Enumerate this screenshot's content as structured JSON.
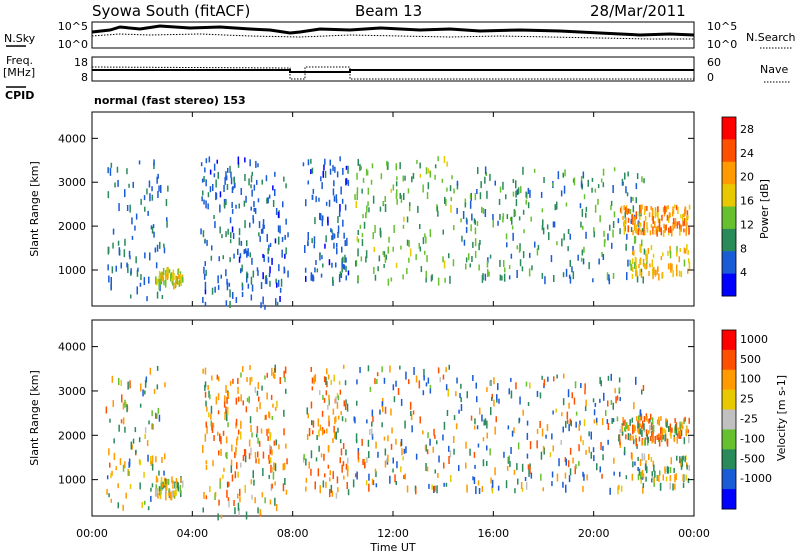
{
  "header": {
    "station": "Syowa South (fitACF)",
    "beam": "Beam 13",
    "date": "28/Mar/2011"
  },
  "top_panels": {
    "nsky_label": "N.Sky",
    "nsky_ticks": [
      "10^5",
      "10^0"
    ],
    "nsearch_label": "N.Search",
    "nsearch_ticks": [
      "10^5",
      "10^0"
    ],
    "freq_label": "Freq.",
    "freq_unit": "[MHz]",
    "freq_ticks": [
      "18",
      "8"
    ],
    "nave_label": "Nave",
    "nave_ticks": [
      "60",
      "0"
    ],
    "cpid_label": "CPID",
    "mode_text": "normal (fast stereo) 153"
  },
  "chart_data": [
    {
      "type": "heatmap",
      "title": "",
      "xlabel": "Time UT",
      "ylabel": "Slant Range [km]",
      "x_ticks": [
        "00:00",
        "04:00",
        "08:00",
        "12:00",
        "16:00",
        "20:00",
        "00:00"
      ],
      "x_range_hours": [
        0,
        24
      ],
      "y_ticks": [
        1000,
        2000,
        3000,
        4000
      ],
      "ylim": [
        180,
        4600
      ],
      "colorbar": {
        "label": "Power [dB]",
        "ticks": [
          4,
          8,
          12,
          16,
          20,
          24,
          28
        ],
        "colors": [
          "#0000ff",
          "#1a5bd6",
          "#2a8a5a",
          "#66c030",
          "#e8c800",
          "#ff9a00",
          "#ff5000",
          "#ff0000"
        ],
        "range": [
          0,
          30
        ]
      },
      "clusters": [
        {
          "t_start": 0.5,
          "t_end": 3.0,
          "r_min": 400,
          "r_max": 3600,
          "value_range": [
            4,
            10
          ],
          "density": 0.6
        },
        {
          "t_start": 2.5,
          "t_end": 3.6,
          "r_min": 700,
          "r_max": 1100,
          "value_range": [
            12,
            20
          ],
          "density": 0.9
        },
        {
          "t_start": 4.3,
          "t_end": 7.8,
          "r_min": 200,
          "r_max": 3600,
          "value_range": [
            3,
            9
          ],
          "density": 1.0
        },
        {
          "t_start": 8.4,
          "t_end": 10.2,
          "r_min": 700,
          "r_max": 3600,
          "value_range": [
            3,
            9
          ],
          "density": 1.0
        },
        {
          "t_start": 10.4,
          "t_end": 14.5,
          "r_min": 800,
          "r_max": 3600,
          "value_range": [
            8,
            16
          ],
          "density": 0.6
        },
        {
          "t_start": 14.5,
          "t_end": 22.0,
          "r_min": 800,
          "r_max": 3400,
          "value_range": [
            5,
            14
          ],
          "density": 0.55
        },
        {
          "t_start": 21.0,
          "t_end": 23.8,
          "r_min": 1900,
          "r_max": 2500,
          "value_range": [
            16,
            26
          ],
          "density": 0.8
        },
        {
          "t_start": 21.5,
          "t_end": 23.8,
          "r_min": 900,
          "r_max": 1600,
          "value_range": [
            14,
            22
          ],
          "density": 0.5
        }
      ]
    },
    {
      "type": "heatmap",
      "title": "",
      "xlabel": "Time UT",
      "ylabel": "Slant Range [km]",
      "x_ticks": [
        "00:00",
        "04:00",
        "08:00",
        "12:00",
        "16:00",
        "20:00",
        "00:00"
      ],
      "x_range_hours": [
        0,
        24
      ],
      "y_ticks": [
        1000,
        2000,
        3000,
        4000
      ],
      "ylim": [
        180,
        4600
      ],
      "colorbar": {
        "label": "Velocity [m s-1]",
        "ticks": [
          1000,
          500,
          100,
          25,
          -25,
          -100,
          -500,
          -1000
        ],
        "colors": [
          "#0000ff",
          "#1a5bd6",
          "#2a8a5a",
          "#66c030",
          "#c0c0c0",
          "#e8c800",
          "#ff9a00",
          "#ff5000",
          "#ff0000"
        ]
      },
      "clusters": [
        {
          "t_start": 0.5,
          "t_end": 3.0,
          "r_min": 400,
          "r_max": 3600,
          "value_range": [
            -600,
            600
          ],
          "density": 0.6
        },
        {
          "t_start": 2.5,
          "t_end": 3.6,
          "r_min": 700,
          "r_max": 1100,
          "value_range": [
            -200,
            200
          ],
          "density": 0.9
        },
        {
          "t_start": 4.3,
          "t_end": 7.8,
          "r_min": 200,
          "r_max": 3600,
          "value_range": [
            -900,
            300
          ],
          "density": 1.0
        },
        {
          "t_start": 8.4,
          "t_end": 10.2,
          "r_min": 700,
          "r_max": 3600,
          "value_range": [
            -900,
            300
          ],
          "density": 1.0
        },
        {
          "t_start": 10.4,
          "t_end": 14.5,
          "r_min": 800,
          "r_max": 3600,
          "value_range": [
            -800,
            900
          ],
          "density": 0.6
        },
        {
          "t_start": 14.5,
          "t_end": 22.0,
          "r_min": 800,
          "r_max": 3400,
          "value_range": [
            -700,
            1000
          ],
          "density": 0.55
        },
        {
          "t_start": 21.0,
          "t_end": 23.8,
          "r_min": 1900,
          "r_max": 2500,
          "value_range": [
            -1000,
            400
          ],
          "density": 0.8
        },
        {
          "t_start": 21.5,
          "t_end": 23.8,
          "r_min": 900,
          "r_max": 1600,
          "value_range": [
            -300,
            300
          ],
          "density": 0.5
        }
      ]
    }
  ]
}
